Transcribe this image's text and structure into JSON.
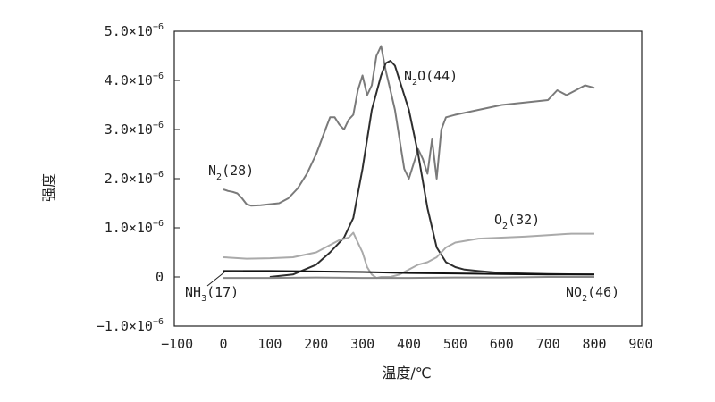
{
  "chart_data": {
    "type": "line",
    "xlabel": "温度/℃",
    "ylabel": "强度",
    "xlim": [
      -100,
      900
    ],
    "ylim": [
      -1e-06,
      5e-06
    ],
    "x_ticks": [
      {
        "value": -100,
        "label": "−100"
      },
      {
        "value": 0,
        "label": "0"
      },
      {
        "value": 100,
        "label": "100"
      },
      {
        "value": 200,
        "label": "200"
      },
      {
        "value": 300,
        "label": "300"
      },
      {
        "value": 400,
        "label": "400"
      },
      {
        "value": 500,
        "label": "500"
      },
      {
        "value": 600,
        "label": "600"
      },
      {
        "value": 700,
        "label": "700"
      },
      {
        "value": 800,
        "label": "800"
      },
      {
        "value": 900,
        "label": "900"
      }
    ],
    "y_ticks": [
      {
        "value": 5e-06,
        "mant": "5.0×10",
        "exp": "−6"
      },
      {
        "value": 4e-06,
        "mant": "4.0×10",
        "exp": "−6"
      },
      {
        "value": 3e-06,
        "mant": "3.0×10",
        "exp": "−6"
      },
      {
        "value": 2e-06,
        "mant": "2.0×10",
        "exp": "−6"
      },
      {
        "value": 1e-06,
        "mant": "1.0×10",
        "exp": "−6"
      },
      {
        "value": 0,
        "mant": "0",
        "exp": ""
      },
      {
        "value": -1e-06,
        "mant": "−1.0×10",
        "exp": "−6"
      }
    ],
    "grid": false,
    "series": [
      {
        "name": "N2(28)",
        "label_parts": [
          "N",
          "2",
          "(28)"
        ],
        "color": "#7a7a7a",
        "x": [
          0,
          10,
          20,
          30,
          40,
          50,
          60,
          80,
          100,
          120,
          140,
          160,
          180,
          200,
          220,
          230,
          240,
          250,
          260,
          270,
          280,
          290,
          300,
          310,
          320,
          330,
          340,
          350,
          360,
          370,
          380,
          390,
          400,
          410,
          420,
          430,
          440,
          450,
          460,
          470,
          480,
          500,
          550,
          600,
          650,
          700,
          720,
          740,
          760,
          780,
          800
        ],
        "y": [
          1.78e-06,
          1.75e-06,
          1.73e-06,
          1.7e-06,
          1.6e-06,
          1.48e-06,
          1.45e-06,
          1.46e-06,
          1.48e-06,
          1.5e-06,
          1.6e-06,
          1.8e-06,
          2.1e-06,
          2.5e-06,
          3e-06,
          3.25e-06,
          3.25e-06,
          3.1e-06,
          3e-06,
          3.2e-06,
          3.3e-06,
          3.8e-06,
          4.1e-06,
          3.7e-06,
          3.9e-06,
          4.5e-06,
          4.7e-06,
          4.2e-06,
          3.8e-06,
          3.4e-06,
          2.8e-06,
          2.2e-06,
          2e-06,
          2.3e-06,
          2.6e-06,
          2.4e-06,
          2.1e-06,
          2.8e-06,
          2e-06,
          3e-06,
          3.25e-06,
          3.3e-06,
          3.4e-06,
          3.5e-06,
          3.55e-06,
          3.6e-06,
          3.8e-06,
          3.7e-06,
          3.8e-06,
          3.9e-06,
          3.85e-06
        ]
      },
      {
        "name": "N2O(44)",
        "label_parts": [
          "N",
          "2",
          "O(44)"
        ],
        "color": "#2e2e2e",
        "x": [
          100,
          150,
          200,
          230,
          260,
          280,
          300,
          320,
          340,
          350,
          360,
          370,
          380,
          400,
          420,
          440,
          460,
          480,
          500,
          520,
          550,
          600,
          700,
          800
        ],
        "y": [
          0,
          5e-08,
          2.5e-07,
          5e-07,
          8e-07,
          1.2e-06,
          2.2e-06,
          3.4e-06,
          4.1e-06,
          4.35e-06,
          4.4e-06,
          4.3e-06,
          4e-06,
          3.4e-06,
          2.5e-06,
          1.4e-06,
          6e-07,
          3e-07,
          2e-07,
          1.5e-07,
          1.2e-07,
          8e-08,
          6e-08,
          5e-08
        ]
      },
      {
        "name": "O2(32)",
        "label_parts": [
          "O",
          "2",
          "(32)"
        ],
        "color": "#aaaaaa",
        "x": [
          0,
          50,
          100,
          150,
          200,
          230,
          250,
          270,
          280,
          290,
          300,
          310,
          320,
          330,
          340,
          360,
          380,
          400,
          420,
          440,
          460,
          480,
          500,
          550,
          600,
          650,
          700,
          750,
          800
        ],
        "y": [
          4e-07,
          3.7e-07,
          3.8e-07,
          4e-07,
          5e-07,
          6.5e-07,
          7.5e-07,
          8e-07,
          9e-07,
          7e-07,
          5e-07,
          2e-07,
          5e-08,
          -2e-08,
          0,
          0,
          5e-08,
          1.5e-07,
          2.5e-07,
          3e-07,
          4e-07,
          6e-07,
          7e-07,
          7.8e-07,
          8e-07,
          8.2e-07,
          8.5e-07,
          8.8e-07,
          8.8e-07
        ]
      },
      {
        "name": "NH3(17)",
        "label_parts": [
          "NH",
          "3",
          "(17)"
        ],
        "color": "#111111",
        "x": [
          0,
          100,
          200,
          300,
          400,
          500,
          600,
          700,
          800
        ],
        "y": [
          1.2e-07,
          1.2e-07,
          1.1e-07,
          1e-07,
          8e-08,
          7e-08,
          6e-08,
          5e-08,
          5e-08
        ]
      },
      {
        "name": "NO2(46)",
        "label_parts": [
          "NO",
          "2",
          "(46)"
        ],
        "color": "#888888",
        "x": [
          0,
          100,
          200,
          300,
          400,
          500,
          600,
          700,
          800
        ],
        "y": [
          -2e-08,
          -2e-08,
          -1e-08,
          -2e-08,
          -2e-08,
          -1e-08,
          -1e-08,
          0,
          0
        ]
      }
    ]
  }
}
